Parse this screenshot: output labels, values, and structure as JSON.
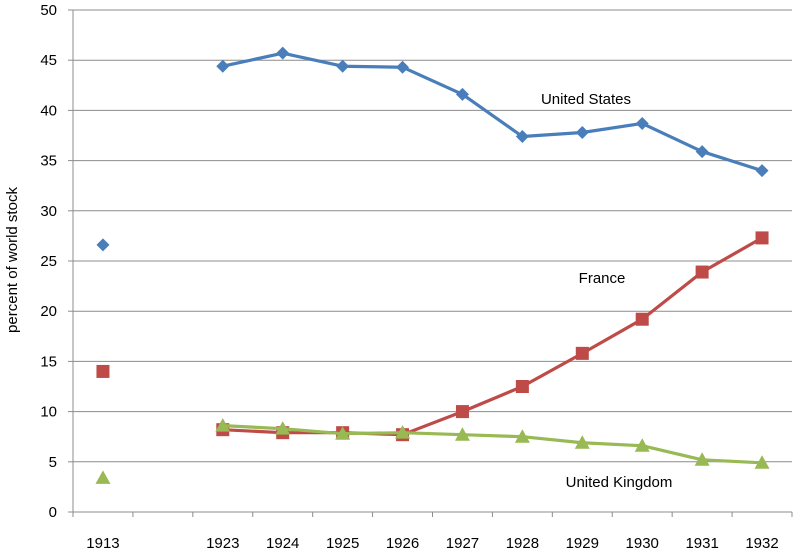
{
  "chart_data": {
    "type": "line",
    "ylabel": "percent of world stock",
    "ylim": [
      0,
      50
    ],
    "ytick_step": 5,
    "grid": true,
    "categories": [
      "1913",
      "",
      "1923",
      "1924",
      "1925",
      "1926",
      "1927",
      "1928",
      "1929",
      "1930",
      "1931",
      "1932"
    ],
    "series": [
      {
        "name": "United States",
        "color": "#4a7ebb",
        "marker": "diamond",
        "values": [
          26.6,
          null,
          44.4,
          45.7,
          44.4,
          44.3,
          41.6,
          37.4,
          37.8,
          38.7,
          35.9,
          34.0
        ]
      },
      {
        "name": "France",
        "color": "#be4b48",
        "marker": "square",
        "values": [
          14.0,
          null,
          8.2,
          7.9,
          7.9,
          7.7,
          10.0,
          12.5,
          15.8,
          19.2,
          23.9,
          27.3
        ]
      },
      {
        "name": "United Kingdom",
        "color": "#98b954",
        "marker": "triangle",
        "values": [
          3.4,
          null,
          8.6,
          8.3,
          7.8,
          7.9,
          7.7,
          7.5,
          6.9,
          6.6,
          5.2,
          4.9
        ]
      }
    ]
  }
}
